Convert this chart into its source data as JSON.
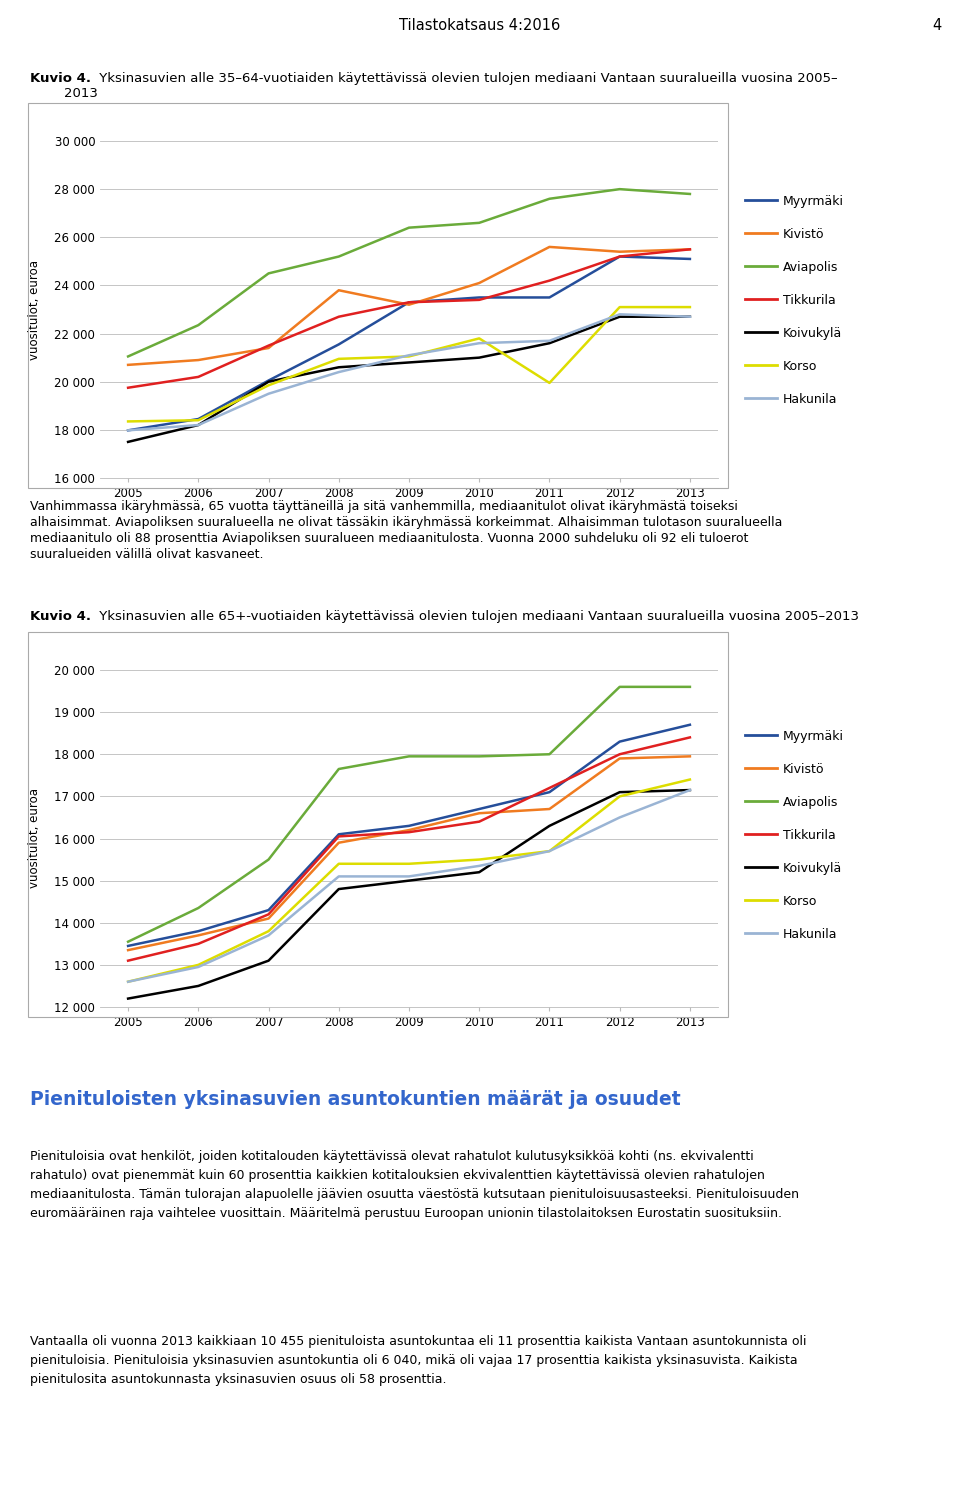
{
  "page_title": "Tilastokatsaus 4:2016",
  "page_number": "4",
  "chart1_title_bold": "Kuvio 4.",
  "chart1_title_normal": " Yksinasuvien alle 35–64-vuotiaiden käytettävissä olevien tulojen mediaani Vantaan suuralueilla vuosina 2005–",
  "chart1_title_line2": "2013",
  "chart1_ylabel": "vuositulot, euroa",
  "chart1_years": [
    2005,
    2006,
    2007,
    2008,
    2009,
    2010,
    2011,
    2012,
    2013
  ],
  "chart1_ylim": [
    16000,
    30000
  ],
  "chart1_yticks": [
    16000,
    18000,
    20000,
    22000,
    24000,
    26000,
    28000,
    30000
  ],
  "chart1_data": {
    "Myyrmäki": [
      17980,
      18450,
      20050,
      21550,
      23300,
      23500,
      23500,
      25200,
      25100
    ],
    "Kivistö": [
      20700,
      20900,
      21400,
      23800,
      23200,
      24100,
      25600,
      25400,
      25500
    ],
    "Aviapolis": [
      21050,
      22350,
      24500,
      25200,
      26400,
      26600,
      27600,
      28000,
      27800
    ],
    "Tikkurila": [
      19750,
      20200,
      21500,
      22700,
      23300,
      23400,
      24200,
      25200,
      25500
    ],
    "Koivukylä": [
      17500,
      18200,
      20000,
      20600,
      20800,
      21000,
      21600,
      22700,
      22700
    ],
    "Korso": [
      18350,
      18400,
      19850,
      20950,
      21050,
      21800,
      19950,
      23100,
      23100
    ],
    "Hakunila": [
      17980,
      18200,
      19500,
      20400,
      21100,
      21600,
      21700,
      22800,
      22700
    ]
  },
  "chart1_colors": {
    "Myyrmäki": "#254e9a",
    "Kivistö": "#f07b20",
    "Aviapolis": "#6aab3a",
    "Tikkurila": "#e02020",
    "Koivukylä": "#000000",
    "Korso": "#dddd00",
    "Hakunila": "#9ab4d4"
  },
  "paragraph1_line1": "Vanhimmassa ikäryhmässä, 65 vuotta täyttäneillä ja sitä vanhemmilla, mediaanitulot olivat ikäryhmästä toiseksi",
  "paragraph1_line2": "alhaisimmat. Aviapoliksen suuralueella ne olivat tässäkin ikäryhmässä korkeimmat. Alhaisimman tulotason suuralueella",
  "paragraph1_line3": "mediaanitulo oli 88 prosenttia Aviapoliksen suuralueen mediaanitulosta. Vuonna 2000 suhdeluku oli 92 eli tuloerot",
  "paragraph1_line4": "suuralueiden välillä olivat kasvaneet.",
  "chart2_title_bold": "Kuvio 4.",
  "chart2_title_normal": " Yksinasuvien alle 65+-vuotiaiden käytettävissä olevien tulojen mediaani Vantaan suuralueilla vuosina 2005–2013",
  "chart2_ylabel": "vuositulot, euroa",
  "chart2_years": [
    2005,
    2006,
    2007,
    2008,
    2009,
    2010,
    2011,
    2012,
    2013
  ],
  "chart2_ylim": [
    12000,
    20000
  ],
  "chart2_yticks": [
    12000,
    13000,
    14000,
    15000,
    16000,
    17000,
    18000,
    19000,
    20000
  ],
  "chart2_data": {
    "Myyrmäki": [
      13450,
      13800,
      14300,
      16100,
      16300,
      16700,
      17100,
      18300,
      18700
    ],
    "Kivistö": [
      13350,
      13700,
      14100,
      15900,
      16200,
      16600,
      16700,
      17900,
      17950
    ],
    "Aviapolis": [
      13550,
      14350,
      15500,
      17650,
      17950,
      17950,
      18000,
      19600,
      19600
    ],
    "Tikkurila": [
      13100,
      13500,
      14200,
      16050,
      16150,
      16400,
      17200,
      18000,
      18400
    ],
    "Koivukylä": [
      12200,
      12500,
      13100,
      14800,
      15000,
      15200,
      16300,
      17100,
      17150
    ],
    "Korso": [
      12600,
      13000,
      13800,
      15400,
      15400,
      15500,
      15700,
      17000,
      17400
    ],
    "Hakunila": [
      12600,
      12950,
      13700,
      15100,
      15100,
      15350,
      15700,
      16500,
      17150
    ]
  },
  "chart2_colors": {
    "Myyrmäki": "#254e9a",
    "Kivistö": "#f07b20",
    "Aviapolis": "#6aab3a",
    "Tikkurila": "#e02020",
    "Koivukylä": "#000000",
    "Korso": "#dddd00",
    "Hakunila": "#9ab4d4"
  },
  "section_title": "Pienituloisten yksinasuvien asuntokuntien määrät ja osuudet",
  "section_para1_lines": [
    "Pienituloisia ovat henkilöt, joiden kotitalouden käytettävissä olevat rahatulot kulutusyksikköä kohti (ns. ekvivalentti",
    "rahatulo) ovat pienemmät kuin 60 prosenttia kaikkien kotitalouksien ekvivalenttien käytettävissä olevien rahatulojen",
    "mediaanitulosta. Tämän tulorajan alapuolelle jäävien osuutta väestöstä kutsutaan pienituloisuusasteeksi. Pienituloisuuden",
    "euromääräinen raja vaihtelee vuosittain. Määritelmä perustuu Euroopan unionin tilastolaitoksen Eurostatin suosituksiin."
  ],
  "section_para2_lines": [
    "Vantaalla oli vuonna 2013 kaikkiaan 10 455 pienituloista asuntokuntaa eli 11 prosenttia kaikista Vantaan asuntokunnista oli",
    "pienituloisia. Pienituloisia yksinasuvien asuntokuntia oli 6 040, mikä oli vajaa 17 prosenttia kaikista yksinasuvista. Kaikista",
    "pienitulosita asuntokunnasta yksinasuvien osuus oli 58 prosenttia."
  ]
}
